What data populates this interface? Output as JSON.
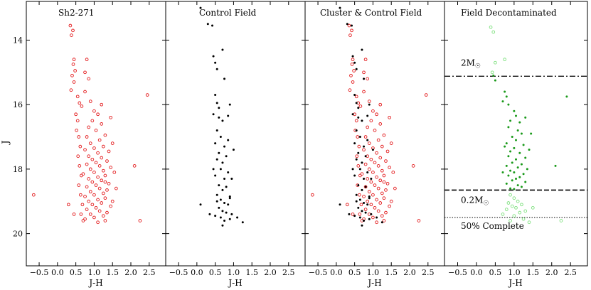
{
  "figure": {
    "ylabel": "J",
    "xlabel": "J-H",
    "panel_titles": [
      "Sh2-271",
      "Control Field",
      "Cluster & Control Field",
      "Field Decontaminated"
    ],
    "xticks": [
      -0.5,
      0.0,
      0.5,
      1.0,
      1.5,
      2.0,
      2.5
    ],
    "xtick_labels": [
      "−0.5",
      "0.0",
      "0.5",
      "1.0",
      "1.5",
      "2.0",
      "2.5"
    ],
    "yticks": [
      14,
      16,
      18,
      20
    ],
    "ytick_labels": [
      "14",
      "16",
      "18",
      "20"
    ],
    "annotations": {
      "mass_upper": "2M",
      "mass_lower": "0.2M",
      "complete": "50% Complete"
    }
  },
  "chart_data": [
    {
      "type": "scatter",
      "title": "Sh2-271",
      "xlabel": "J-H",
      "ylabel": "J",
      "xlim": [
        -0.85,
        2.95
      ],
      "ylim": [
        21.0,
        12.8
      ],
      "y_inverted": true,
      "series": [
        {
          "color": "#e31a1c",
          "marker": "open-circle",
          "points": [
            [
              0.35,
              13.55
            ],
            [
              0.42,
              13.7
            ],
            [
              0.38,
              13.85
            ],
            [
              0.45,
              14.6
            ],
            [
              0.43,
              14.75
            ],
            [
              0.48,
              14.95
            ],
            [
              0.4,
              15.1
            ],
            [
              0.45,
              15.3
            ],
            [
              0.37,
              15.55
            ],
            [
              0.8,
              14.6
            ],
            [
              0.75,
              15.0
            ],
            [
              0.85,
              15.2
            ],
            [
              0.55,
              15.75
            ],
            [
              0.6,
              15.95
            ],
            [
              0.66,
              16.05
            ],
            [
              0.5,
              16.3
            ],
            [
              0.55,
              16.5
            ],
            [
              0.52,
              16.8
            ],
            [
              0.58,
              17.0
            ],
            [
              0.62,
              17.3
            ],
            [
              0.56,
              17.6
            ],
            [
              0.6,
              17.9
            ],
            [
              0.65,
              18.2
            ],
            [
              0.58,
              18.5
            ],
            [
              0.63,
              18.8
            ],
            [
              0.68,
              19.1
            ],
            [
              0.64,
              19.4
            ],
            [
              0.7,
              19.6
            ],
            [
              0.75,
              15.6
            ],
            [
              0.9,
              15.9
            ],
            [
              1.0,
              16.2
            ],
            [
              1.1,
              16.3
            ],
            [
              0.95,
              16.5
            ],
            [
              1.2,
              16.6
            ],
            [
              0.85,
              16.7
            ],
            [
              1.05,
              16.8
            ],
            [
              1.3,
              16.95
            ],
            [
              0.8,
              17.0
            ],
            [
              1.15,
              17.1
            ],
            [
              0.9,
              17.2
            ],
            [
              1.25,
              17.3
            ],
            [
              1.0,
              17.35
            ],
            [
              0.75,
              17.4
            ],
            [
              1.4,
              17.45
            ],
            [
              1.1,
              17.5
            ],
            [
              0.85,
              17.6
            ],
            [
              1.2,
              17.65
            ],
            [
              0.95,
              17.7
            ],
            [
              1.35,
              17.75
            ],
            [
              1.05,
              17.8
            ],
            [
              0.8,
              17.85
            ],
            [
              1.15,
              17.9
            ],
            [
              1.45,
              17.95
            ],
            [
              0.9,
              18.0
            ],
            [
              1.25,
              18.05
            ],
            [
              1.0,
              18.1
            ],
            [
              0.7,
              18.15
            ],
            [
              1.3,
              18.2
            ],
            [
              1.1,
              18.25
            ],
            [
              0.85,
              18.3
            ],
            [
              1.2,
              18.35
            ],
            [
              0.95,
              18.4
            ],
            [
              1.4,
              18.45
            ],
            [
              1.05,
              18.5
            ],
            [
              0.8,
              18.55
            ],
            [
              1.15,
              18.6
            ],
            [
              1.35,
              18.65
            ],
            [
              0.9,
              18.7
            ],
            [
              1.25,
              18.75
            ],
            [
              1.0,
              18.8
            ],
            [
              0.75,
              18.85
            ],
            [
              1.3,
              18.9
            ],
            [
              1.1,
              18.95
            ],
            [
              0.85,
              19.0
            ],
            [
              1.2,
              19.05
            ],
            [
              0.95,
              19.1
            ],
            [
              1.45,
              19.15
            ],
            [
              1.05,
              19.2
            ],
            [
              0.8,
              19.25
            ],
            [
              1.15,
              19.3
            ],
            [
              1.35,
              19.35
            ],
            [
              0.9,
              19.4
            ],
            [
              1.25,
              19.45
            ],
            [
              1.0,
              19.5
            ],
            [
              0.75,
              19.55
            ],
            [
              1.3,
              19.6
            ],
            [
              1.1,
              19.65
            ],
            [
              1.5,
              17.2
            ],
            [
              1.55,
              18.1
            ],
            [
              1.6,
              18.6
            ],
            [
              1.5,
              19.0
            ],
            [
              1.45,
              16.4
            ],
            [
              1.2,
              16.0
            ],
            [
              1.3,
              18.4
            ],
            [
              2.45,
              15.7
            ],
            [
              2.1,
              17.9
            ],
            [
              2.25,
              19.6
            ],
            [
              -0.65,
              18.8
            ],
            [
              0.3,
              19.1
            ],
            [
              0.45,
              19.4
            ]
          ]
        }
      ]
    },
    {
      "type": "scatter",
      "title": "Control Field",
      "xlabel": "J-H",
      "ylabel": "",
      "xlim": [
        -0.85,
        2.95
      ],
      "ylim": [
        21.0,
        12.8
      ],
      "y_inverted": true,
      "series": [
        {
          "color": "#000000",
          "marker": "filled-dot",
          "points": [
            [
              0.1,
              13.0
            ],
            [
              0.3,
              13.5
            ],
            [
              0.42,
              13.55
            ],
            [
              0.45,
              14.5
            ],
            [
              0.5,
              14.7
            ],
            [
              0.55,
              14.9
            ],
            [
              0.7,
              14.3
            ],
            [
              0.75,
              15.2
            ],
            [
              0.5,
              15.7
            ],
            [
              0.55,
              15.95
            ],
            [
              0.9,
              16.0
            ],
            [
              0.45,
              16.3
            ],
            [
              0.6,
              16.4
            ],
            [
              0.7,
              16.5
            ],
            [
              0.85,
              16.35
            ],
            [
              0.55,
              16.8
            ],
            [
              0.65,
              17.0
            ],
            [
              0.5,
              17.2
            ],
            [
              0.75,
              17.3
            ],
            [
              0.6,
              17.5
            ],
            [
              0.8,
              17.6
            ],
            [
              0.55,
              17.7
            ],
            [
              0.7,
              17.8
            ],
            [
              0.65,
              18.0
            ],
            [
              0.85,
              18.1
            ],
            [
              0.5,
              18.2
            ],
            [
              0.75,
              18.3
            ],
            [
              0.6,
              18.5
            ],
            [
              0.8,
              18.55
            ],
            [
              0.7,
              18.65
            ],
            [
              0.55,
              18.8
            ],
            [
              0.9,
              18.85
            ],
            [
              0.65,
              18.95
            ],
            [
              0.75,
              19.05
            ],
            [
              0.85,
              19.1
            ],
            [
              0.6,
              19.2
            ],
            [
              0.7,
              19.3
            ],
            [
              0.8,
              19.35
            ],
            [
              0.95,
              19.4
            ],
            [
              0.5,
              19.45
            ],
            [
              0.65,
              19.5
            ],
            [
              0.9,
              19.55
            ],
            [
              0.75,
              19.6
            ],
            [
              1.1,
              19.5
            ],
            [
              1.25,
              19.65
            ],
            [
              0.7,
              19.75
            ],
            [
              0.1,
              19.1
            ],
            [
              0.35,
              19.4
            ],
            [
              0.95,
              18.3
            ],
            [
              1.0,
              17.4
            ],
            [
              0.9,
              18.9
            ],
            [
              0.6,
              16.1
            ],
            [
              0.45,
              18.0
            ],
            [
              0.85,
              17.1
            ],
            [
              0.55,
              19.0
            ]
          ]
        }
      ]
    },
    {
      "type": "scatter",
      "title": "Cluster & Control Field",
      "xlabel": "J-H",
      "ylabel": "",
      "xlim": [
        -0.85,
        2.95
      ],
      "ylim": [
        21.0,
        12.8
      ],
      "y_inverted": true,
      "series": [
        {
          "color": "#e31a1c",
          "marker": "open-circle",
          "ref": "Sh2-271"
        },
        {
          "color": "#000000",
          "marker": "filled-dot",
          "ref": "Control Field"
        }
      ]
    },
    {
      "type": "scatter",
      "title": "Field Decontaminated",
      "xlabel": "J-H",
      "ylabel": "",
      "xlim": [
        -0.85,
        2.95
      ],
      "ylim": [
        21.0,
        12.8
      ],
      "y_inverted": true,
      "hlines": [
        {
          "y": 15.12,
          "style": "dashdot",
          "label": "2M",
          "label_y": 14.8
        },
        {
          "y": 18.65,
          "style": "dashed",
          "label": "0.2M",
          "label_y": 19.05
        },
        {
          "y": 19.5,
          "style": "dotted",
          "label": "50% Complete",
          "label_y": 19.85
        }
      ],
      "series": [
        {
          "color": "#1a9a1a",
          "marker": "filled-dot",
          "points": [
            [
              0.45,
              15.1
            ],
            [
              0.5,
              15.25
            ],
            [
              0.75,
              15.6
            ],
            [
              0.8,
              15.75
            ],
            [
              0.7,
              15.9
            ],
            [
              1.0,
              16.2
            ],
            [
              1.05,
              16.35
            ],
            [
              0.9,
              16.5
            ],
            [
              1.15,
              16.55
            ],
            [
              0.85,
              16.7
            ],
            [
              1.1,
              16.8
            ],
            [
              1.2,
              16.9
            ],
            [
              0.95,
              17.0
            ],
            [
              1.05,
              17.1
            ],
            [
              0.8,
              17.2
            ],
            [
              1.25,
              17.25
            ],
            [
              1.0,
              17.35
            ],
            [
              0.9,
              17.45
            ],
            [
              1.15,
              17.5
            ],
            [
              0.85,
              17.6
            ],
            [
              1.3,
              17.65
            ],
            [
              1.05,
              17.7
            ],
            [
              0.95,
              17.8
            ],
            [
              1.2,
              17.85
            ],
            [
              0.8,
              17.9
            ],
            [
              1.1,
              17.95
            ],
            [
              1.35,
              18.0
            ],
            [
              0.9,
              18.05
            ],
            [
              1.0,
              18.1
            ],
            [
              1.25,
              18.15
            ],
            [
              0.85,
              18.2
            ],
            [
              1.15,
              18.25
            ],
            [
              1.05,
              18.3
            ],
            [
              0.95,
              18.35
            ],
            [
              1.3,
              18.4
            ],
            [
              0.8,
              18.45
            ],
            [
              1.1,
              18.5
            ],
            [
              1.2,
              18.55
            ],
            [
              0.9,
              18.6
            ],
            [
              1.0,
              18.62
            ],
            [
              1.4,
              17.4
            ],
            [
              1.45,
              16.9
            ],
            [
              0.75,
              17.3
            ],
            [
              0.7,
              18.1
            ],
            [
              2.4,
              15.75
            ],
            [
              2.1,
              17.9
            ],
            [
              1.3,
              16.4
            ],
            [
              0.85,
              16.0
            ]
          ]
        },
        {
          "color": "#7fe07f",
          "marker": "open-circle",
          "points": [
            [
              0.38,
              13.6
            ],
            [
              0.45,
              13.75
            ],
            [
              0.5,
              14.7
            ],
            [
              0.75,
              14.6
            ],
            [
              0.42,
              15.0
            ],
            [
              0.9,
              18.8
            ],
            [
              1.0,
              18.9
            ],
            [
              1.1,
              19.0
            ],
            [
              0.85,
              19.05
            ],
            [
              1.2,
              19.1
            ],
            [
              0.95,
              19.15
            ],
            [
              1.05,
              19.2
            ],
            [
              0.8,
              19.25
            ],
            [
              1.3,
              19.3
            ],
            [
              1.15,
              19.35
            ],
            [
              0.7,
              19.4
            ],
            [
              1.0,
              19.45
            ],
            [
              1.25,
              19.55
            ],
            [
              0.9,
              19.6
            ],
            [
              1.4,
              19.65
            ],
            [
              2.25,
              19.6
            ],
            [
              1.5,
              19.2
            ]
          ]
        }
      ]
    }
  ]
}
